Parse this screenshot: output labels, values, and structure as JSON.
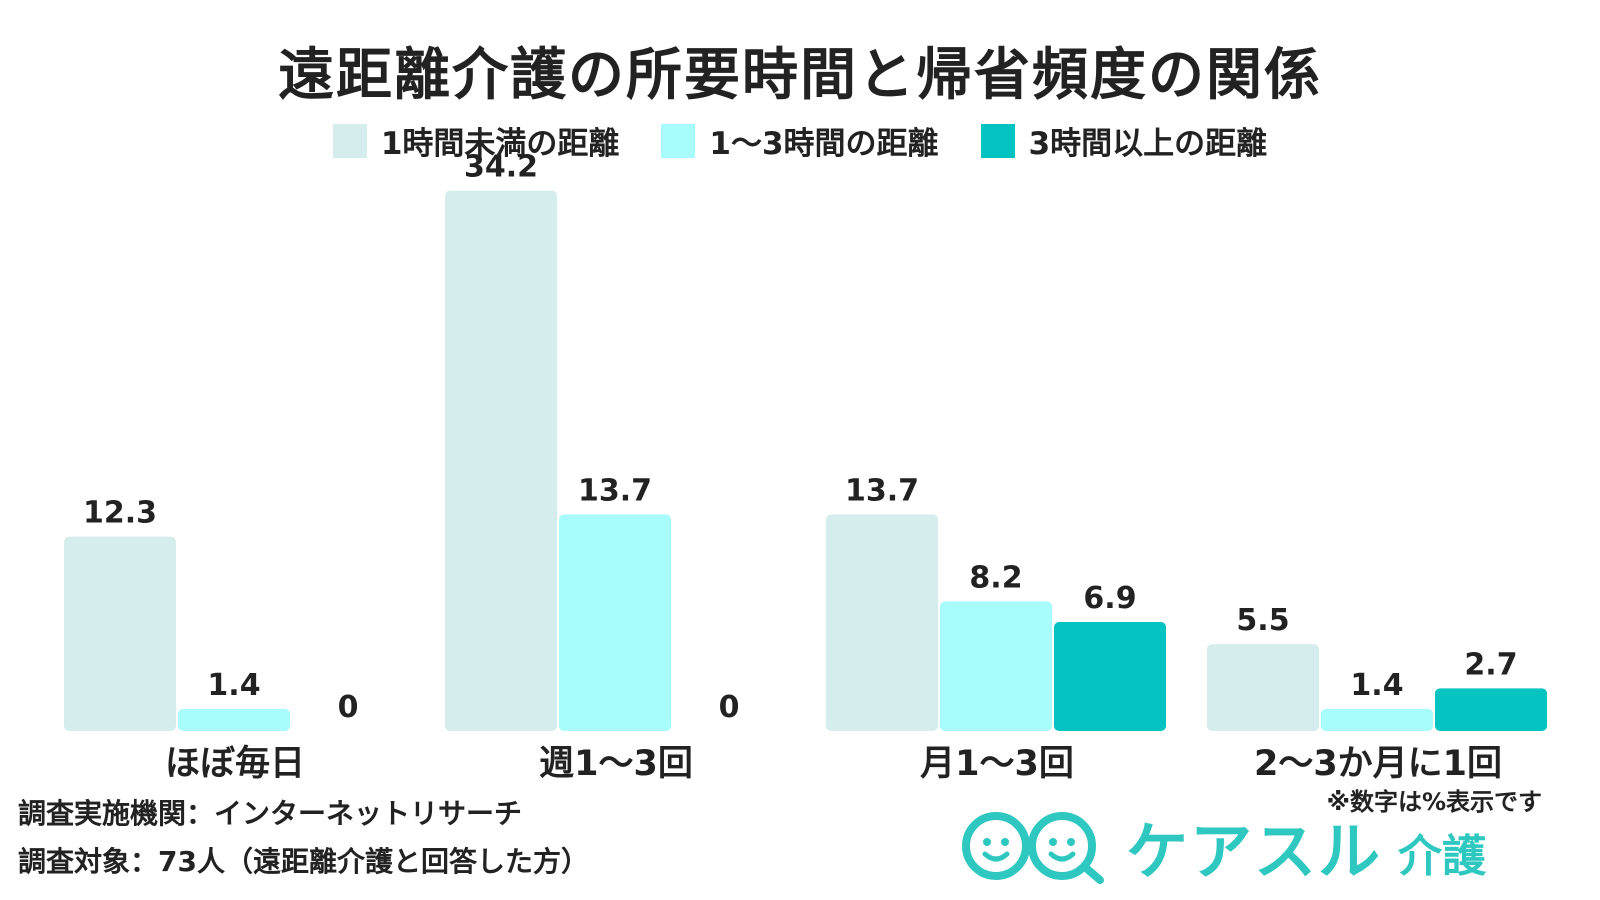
{
  "chart_data": {
    "type": "bar",
    "title": "遠距離介護の所要時間と帰省頻度の関係",
    "categories": [
      "ほぼ毎日",
      "週1〜3回",
      "月1〜3回",
      "2〜3か月に1回"
    ],
    "series": [
      {
        "name": "1時間未満の距離",
        "values": [
          12.3,
          34.2,
          13.7,
          5.5
        ],
        "color": "#d5eeed"
      },
      {
        "name": "1〜3時間の距離",
        "values": [
          1.4,
          13.7,
          8.2,
          1.4
        ],
        "color": "#a8fcfb"
      },
      {
        "name": "3時間以上の距離",
        "values": [
          0,
          0,
          6.9,
          2.7
        ],
        "color": "#05c3c0"
      }
    ],
    "legend_position": "top-center",
    "grid": false
  },
  "note": "※数字は%表示です",
  "footer": {
    "institution": "調査実施機関：インターネットリサーチ",
    "target": "調査対象：73人（遠距離介護と回答した方）"
  },
  "logo": {
    "name": "ケアスル",
    "suffix": "介護",
    "color": "#2ec8c0"
  }
}
